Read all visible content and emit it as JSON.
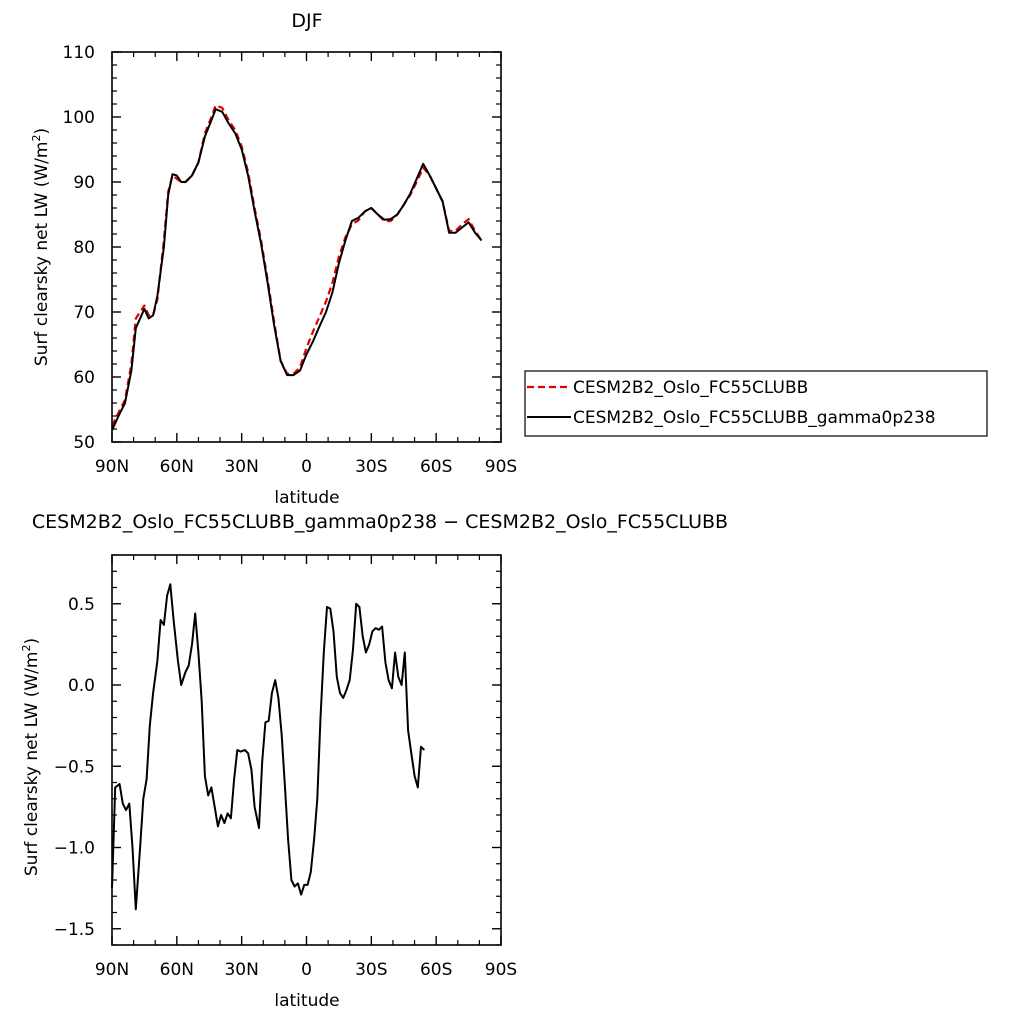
{
  "chart_data": [
    {
      "type": "line",
      "title": "DJF",
      "xlabel": "latitude",
      "ylabel": "Surf clearsky net LW (W/m²)",
      "ylabel_main": "Surf clearsky net LW (W/m",
      "ylabel_sup": "2",
      "ylabel_end": ")",
      "xlim": [
        -90,
        90
      ],
      "ylim": [
        50,
        110
      ],
      "x_ticks": [
        -90,
        -60,
        -30,
        0,
        30,
        60,
        90
      ],
      "x_tick_labels": [
        "90N",
        "60N",
        "30N",
        "0",
        "30S",
        "60S",
        "90S"
      ],
      "y_ticks": [
        50,
        60,
        70,
        80,
        90,
        100,
        110
      ],
      "y_tick_labels": [
        "50",
        "60",
        "70",
        "80",
        "90",
        "100",
        "110"
      ],
      "legend_position": "right",
      "series": [
        {
          "name": "CESM2B2_Oslo_FC55CLUBB",
          "color": "#e00000",
          "dash": "dashed",
          "points": [
            [
              -90,
              52.5
            ],
            [
              -87,
              54.5
            ],
            [
              -84,
              56.5
            ],
            [
              -81,
              62
            ],
            [
              -79,
              69
            ],
            [
              -77,
              70
            ],
            [
              -75,
              71
            ],
            [
              -73,
              69.5
            ],
            [
              -71,
              69.5
            ],
            [
              -69,
              72
            ],
            [
              -66,
              81
            ],
            [
              -64,
              88.5
            ],
            [
              -62,
              91
            ],
            [
              -60,
              90.5
            ],
            [
              -58,
              90
            ],
            [
              -56,
              90
            ],
            [
              -53,
              91
            ],
            [
              -50,
              93
            ],
            [
              -47,
              97.5
            ],
            [
              -44,
              100
            ],
            [
              -42,
              101.8
            ],
            [
              -39,
              101.4
            ],
            [
              -36,
              99.5
            ],
            [
              -33,
              98
            ],
            [
              -30,
              95.5
            ],
            [
              -27,
              91.5
            ],
            [
              -24,
              86
            ],
            [
              -21,
              81
            ],
            [
              -18,
              75
            ],
            [
              -15,
              68.5
            ],
            [
              -12,
              62.5
            ],
            [
              -9,
              60.5
            ],
            [
              -6,
              60.5
            ],
            [
              -3,
              61.5
            ],
            [
              0,
              64.5
            ],
            [
              3,
              67
            ],
            [
              6,
              69.3
            ],
            [
              9,
              71.6
            ],
            [
              12,
              74.5
            ],
            [
              15,
              78.5
            ],
            [
              18,
              81.5
            ],
            [
              21,
              83.5
            ],
            [
              24,
              84.1
            ],
            [
              27,
              85.5
            ],
            [
              30,
              86
            ],
            [
              33,
              85
            ],
            [
              36,
              84
            ],
            [
              39,
              84
            ],
            [
              42,
              85
            ],
            [
              45,
              86.5
            ],
            [
              48,
              88
            ],
            [
              51,
              90
            ],
            [
              54,
              92.2
            ],
            [
              57,
              91
            ],
            [
              60,
              89
            ],
            [
              63,
              87
            ],
            [
              66,
              82.5
            ],
            [
              69,
              82.5
            ],
            [
              72,
              83.5
            ],
            [
              75,
              84.3
            ],
            [
              78,
              82.5
            ],
            [
              81,
              81
            ]
          ]
        },
        {
          "name": "CESM2B2_Oslo_FC55CLUBB_gamma0p238",
          "color": "#000000",
          "dash": "solid",
          "points": [
            [
              -90,
              51.8
            ],
            [
              -87,
              54
            ],
            [
              -84,
              56
            ],
            [
              -81,
              61
            ],
            [
              -79,
              67.5
            ],
            [
              -77,
              69
            ],
            [
              -75,
              70.5
            ],
            [
              -73,
              69
            ],
            [
              -71,
              69.5
            ],
            [
              -69,
              72.5
            ],
            [
              -66,
              80
            ],
            [
              -64,
              88
            ],
            [
              -62,
              91.2
            ],
            [
              -60,
              91
            ],
            [
              -58,
              90
            ],
            [
              -56,
              90
            ],
            [
              -53,
              91
            ],
            [
              -50,
              93
            ],
            [
              -47,
              97
            ],
            [
              -44,
              99.5
            ],
            [
              -42,
              101.2
            ],
            [
              -39,
              100.8
            ],
            [
              -36,
              99
            ],
            [
              -33,
              97.5
            ],
            [
              -30,
              95
            ],
            [
              -27,
              91
            ],
            [
              -24,
              85.5
            ],
            [
              -21,
              80.5
            ],
            [
              -18,
              74.5
            ],
            [
              -15,
              68
            ],
            [
              -12,
              62.5
            ],
            [
              -9,
              60.3
            ],
            [
              -6,
              60.3
            ],
            [
              -3,
              61
            ],
            [
              0,
              63.5
            ],
            [
              3,
              65.5
            ],
            [
              6,
              67.8
            ],
            [
              9,
              70
            ],
            [
              12,
              73
            ],
            [
              15,
              77.5
            ],
            [
              18,
              81
            ],
            [
              21,
              84
            ],
            [
              24,
              84.5
            ],
            [
              27,
              85.5
            ],
            [
              30,
              86
            ],
            [
              33,
              85
            ],
            [
              36,
              84.2
            ],
            [
              39,
              84.3
            ],
            [
              42,
              85
            ],
            [
              45,
              86.5
            ],
            [
              48,
              88.2
            ],
            [
              51,
              90.5
            ],
            [
              54,
              92.8
            ],
            [
              57,
              91
            ],
            [
              60,
              89
            ],
            [
              63,
              87
            ],
            [
              66,
              82.2
            ],
            [
              69,
              82.2
            ],
            [
              72,
              83
            ],
            [
              75,
              83.8
            ],
            [
              78,
              82.2
            ],
            [
              81,
              81
            ]
          ]
        }
      ]
    },
    {
      "type": "line",
      "title": "CESM2B2_Oslo_FC55CLUBB_gamma0p238 − CESM2B2_Oslo_FC55CLUBB",
      "xlabel": "latitude",
      "ylabel": "Surf clearsky net LW (W/m²)",
      "ylabel_main": "Surf clearsky net LW (W/m",
      "ylabel_sup": "2",
      "ylabel_end": ")",
      "xlim": [
        -90,
        90
      ],
      "ylim": [
        -1.6,
        0.8
      ],
      "x_ticks": [
        -90,
        -60,
        -30,
        0,
        30,
        60,
        90
      ],
      "x_tick_labels": [
        "90N",
        "60N",
        "30N",
        "0",
        "30S",
        "60S",
        "90S"
      ],
      "y_ticks": [
        -1.5,
        -1.0,
        -0.5,
        0.0,
        0.5
      ],
      "y_tick_labels": [
        "−1.5",
        "−1.0",
        "−0.5",
        "0.0",
        "0.5"
      ],
      "series": [
        {
          "name": "",
          "color": "#000000",
          "dash": "solid",
          "points": [
            [
              -90,
              -1.25
            ],
            [
              -88.5,
              -0.63
            ],
            [
              -86.5,
              -0.61
            ],
            [
              -85,
              -0.73
            ],
            [
              -83.5,
              -0.77
            ],
            [
              -82,
              -0.73
            ],
            [
              -80.5,
              -1.0
            ],
            [
              -79,
              -1.38
            ],
            [
              -77,
              -1.0
            ],
            [
              -75.5,
              -0.7
            ],
            [
              -74,
              -0.58
            ],
            [
              -72.5,
              -0.25
            ],
            [
              -71,
              -0.05
            ],
            [
              -69,
              0.15
            ],
            [
              -67.5,
              0.4
            ],
            [
              -66,
              0.37
            ],
            [
              -64.5,
              0.55
            ],
            [
              -63,
              0.62
            ],
            [
              -61.5,
              0.4
            ],
            [
              -59.5,
              0.15
            ],
            [
              -58,
              0.0
            ],
            [
              -56,
              0.08
            ],
            [
              -54.5,
              0.12
            ],
            [
              -53,
              0.25
            ],
            [
              -51.5,
              0.44
            ],
            [
              -50,
              0.2
            ],
            [
              -48.5,
              -0.1
            ],
            [
              -47,
              -0.56
            ],
            [
              -45.5,
              -0.68
            ],
            [
              -44,
              -0.63
            ],
            [
              -42.5,
              -0.75
            ],
            [
              -41,
              -0.87
            ],
            [
              -39.5,
              -0.8
            ],
            [
              -38,
              -0.85
            ],
            [
              -36.5,
              -0.79
            ],
            [
              -35,
              -0.82
            ],
            [
              -33.5,
              -0.58
            ],
            [
              -32,
              -0.4
            ],
            [
              -30.5,
              -0.41
            ],
            [
              -28.5,
              -0.4
            ],
            [
              -27,
              -0.42
            ],
            [
              -25.5,
              -0.52
            ],
            [
              -24,
              -0.75
            ],
            [
              -22,
              -0.88
            ],
            [
              -20.5,
              -0.47
            ],
            [
              -19,
              -0.23
            ],
            [
              -17.5,
              -0.22
            ],
            [
              -16,
              -0.05
            ],
            [
              -14.5,
              0.03
            ],
            [
              -13,
              -0.08
            ],
            [
              -11.5,
              -0.3
            ],
            [
              -10,
              -0.62
            ],
            [
              -8.5,
              -0.95
            ],
            [
              -7,
              -1.2
            ],
            [
              -5.5,
              -1.24
            ],
            [
              -4,
              -1.22
            ],
            [
              -2.5,
              -1.29
            ],
            [
              -1,
              -1.23
            ],
            [
              0.5,
              -1.23
            ],
            [
              2,
              -1.15
            ],
            [
              3.5,
              -0.95
            ],
            [
              5,
              -0.7
            ],
            [
              6.5,
              -0.2
            ],
            [
              8,
              0.2
            ],
            [
              9.5,
              0.48
            ],
            [
              11,
              0.47
            ],
            [
              12.5,
              0.33
            ],
            [
              14,
              0.05
            ],
            [
              15.5,
              -0.05
            ],
            [
              17,
              -0.08
            ],
            [
              18.5,
              -0.03
            ],
            [
              20,
              0.03
            ],
            [
              21.5,
              0.22
            ],
            [
              23,
              0.5
            ],
            [
              24.5,
              0.48
            ],
            [
              26,
              0.3
            ],
            [
              27.5,
              0.2
            ],
            [
              29,
              0.25
            ],
            [
              30.5,
              0.33
            ],
            [
              32,
              0.35
            ],
            [
              33.5,
              0.34
            ],
            [
              35,
              0.36
            ],
            [
              36.5,
              0.14
            ],
            [
              38,
              0.03
            ],
            [
              39.5,
              -0.02
            ],
            [
              41,
              0.2
            ],
            [
              42.5,
              0.05
            ],
            [
              44,
              0.0
            ],
            [
              45.5,
              0.2
            ],
            [
              47,
              -0.28
            ],
            [
              48.5,
              -0.42
            ],
            [
              50,
              -0.56
            ],
            [
              51.5,
              -0.63
            ],
            [
              53,
              -0.38
            ],
            [
              54.5,
              -0.4
            ]
          ]
        }
      ]
    }
  ]
}
